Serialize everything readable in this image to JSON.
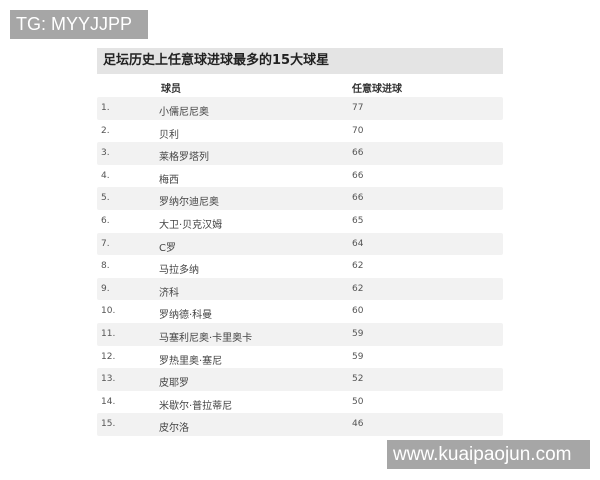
{
  "watermarks": {
    "top_left": "TG: MYYJJPP",
    "bottom_right": "www.kuaipaojun.com"
  },
  "table": {
    "title": "足坛历史上任意球进球最多的15大球星",
    "headers": {
      "rank": "",
      "player": "球员",
      "goals": "任意球进球"
    },
    "rows": [
      {
        "rank": "1.",
        "player": "小儒尼尼奥",
        "goals": "77"
      },
      {
        "rank": "2.",
        "player": "贝利",
        "goals": "70"
      },
      {
        "rank": "3.",
        "player": "莱格罗塔列",
        "goals": "66"
      },
      {
        "rank": "4.",
        "player": "梅西",
        "goals": "66"
      },
      {
        "rank": "5.",
        "player": "罗纳尔迪尼奥",
        "goals": "66"
      },
      {
        "rank": "6.",
        "player": "大卫·贝克汉姆",
        "goals": "65"
      },
      {
        "rank": "7.",
        "player": "C罗",
        "goals": "64"
      },
      {
        "rank": "8.",
        "player": "马拉多纳",
        "goals": "62"
      },
      {
        "rank": "9.",
        "player": "济科",
        "goals": "62"
      },
      {
        "rank": "10.",
        "player": "罗纳德·科曼",
        "goals": "60"
      },
      {
        "rank": "11.",
        "player": "马塞利尼奥·卡里奥卡",
        "goals": "59"
      },
      {
        "rank": "12.",
        "player": "罗热里奥·塞尼",
        "goals": "59"
      },
      {
        "rank": "13.",
        "player": "皮耶罗",
        "goals": "52"
      },
      {
        "rank": "14.",
        "player": "米歇尔·普拉蒂尼",
        "goals": "50"
      },
      {
        "rank": "15.",
        "player": "皮尔洛",
        "goals": "46"
      }
    ]
  }
}
